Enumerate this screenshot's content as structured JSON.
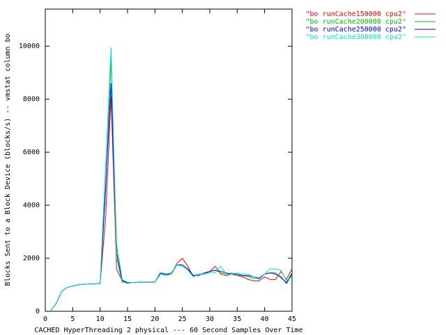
{
  "chart_data": {
    "type": "line",
    "x_label": "CACHED HyperThreading 2 physical --- 60 Second Samples Over Time",
    "y_label": "Blocks Sent to a Block Device (blocks/s) -- vmstat column bo",
    "x": [
      1,
      2,
      3,
      4,
      5,
      6,
      7,
      8,
      9,
      10,
      11,
      12,
      13,
      14,
      15,
      16,
      17,
      18,
      19,
      20,
      21,
      22,
      23,
      24,
      25,
      26,
      27,
      28,
      29,
      30,
      31,
      32,
      33,
      34,
      35,
      36,
      37,
      38,
      39,
      40,
      41,
      42,
      43,
      44,
      45
    ],
    "series": [
      {
        "name": "\"bo runCache150000 cpu2\"",
        "color": "#ff0000",
        "values": [
          30,
          300,
          750,
          900,
          950,
          1000,
          1020,
          1030,
          1030,
          1050,
          3500,
          8100,
          1600,
          1150,
          1080,
          1080,
          1100,
          1100,
          1100,
          1100,
          1400,
          1350,
          1400,
          1800,
          2000,
          1700,
          1300,
          1400,
          1400,
          1500,
          1700,
          1400,
          1350,
          1400,
          1350,
          1300,
          1200,
          1150,
          1150,
          1300,
          1200,
          1200,
          1500,
          1200,
          1600
        ]
      },
      {
        "name": "\"bo runCache200000 cpu2\"",
        "color": "#00c000",
        "values": [
          30,
          300,
          750,
          900,
          950,
          1000,
          1020,
          1030,
          1030,
          1050,
          4500,
          9500,
          2500,
          1200,
          1080,
          1080,
          1100,
          1100,
          1100,
          1100,
          1400,
          1400,
          1450,
          1750,
          1700,
          1550,
          1350,
          1400,
          1400,
          1500,
          1550,
          1450,
          1400,
          1450,
          1350,
          1350,
          1300,
          1250,
          1250,
          1400,
          1450,
          1450,
          1250,
          1100,
          1450
        ]
      },
      {
        "name": "\"bo runCache250000 cpu2\"",
        "color": "#0000ff",
        "values": [
          30,
          300,
          750,
          900,
          950,
          1000,
          1020,
          1030,
          1030,
          1050,
          4700,
          8600,
          2200,
          1150,
          1080,
          1080,
          1100,
          1100,
          1100,
          1100,
          1450,
          1400,
          1400,
          1750,
          1750,
          1600,
          1350,
          1350,
          1450,
          1500,
          1550,
          1500,
          1450,
          1400,
          1400,
          1350,
          1350,
          1300,
          1250,
          1400,
          1450,
          1400,
          1300,
          1050,
          1400
        ]
      },
      {
        "name": "\"bo runCache300000 cpu2\"",
        "color": "#00e0e0",
        "values": [
          30,
          300,
          750,
          900,
          950,
          1000,
          1020,
          1030,
          1030,
          1050,
          5500,
          9950,
          2000,
          1100,
          1050,
          1080,
          1100,
          1100,
          1100,
          1100,
          1400,
          1350,
          1400,
          1750,
          1700,
          1550,
          1300,
          1400,
          1400,
          1450,
          1450,
          1700,
          1400,
          1400,
          1450,
          1400,
          1400,
          1300,
          1200,
          1400,
          1600,
          1600,
          1550,
          1150,
          1300
        ]
      }
    ],
    "xlim": [
      0,
      45
    ],
    "ylim": [
      0,
      11400
    ],
    "xticks": [
      0,
      5,
      10,
      15,
      20,
      25,
      30,
      35,
      40,
      45
    ],
    "yticks": [
      0,
      2000,
      4000,
      6000,
      8000,
      10000
    ],
    "legend": "top-right",
    "grid": false
  }
}
